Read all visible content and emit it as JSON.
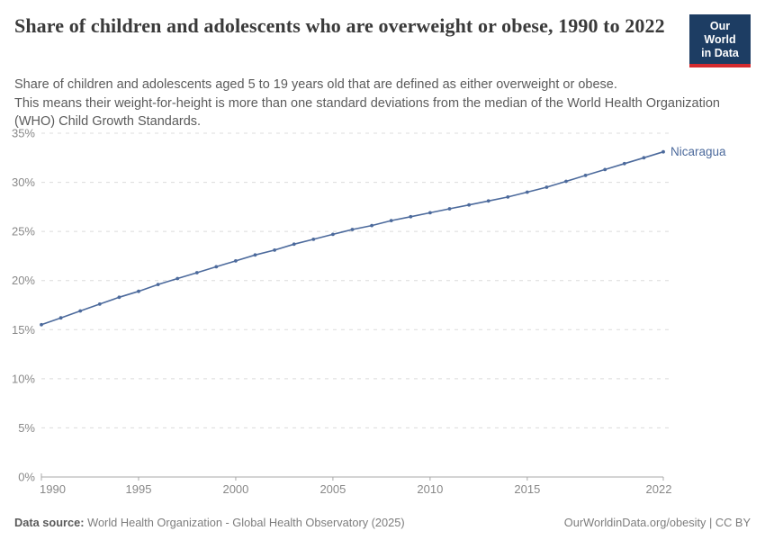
{
  "header": {
    "title": "Share of children and adolescents who are overweight or obese, 1990 to 2022",
    "subtitle_line1": "Share of children and adolescents aged 5 to 19 years old that are defined as either overweight or obese.",
    "subtitle_line2": "This means their weight-for-height is more than one standard deviations from the median of the World Health Organization (WHO) Child Growth Standards.",
    "logo": {
      "line1": "Our World",
      "line2": "in Data"
    }
  },
  "chart_data": {
    "type": "line",
    "title": "Share of children and adolescents who are overweight or obese, 1990 to 2022",
    "entity_label": "Nicaragua",
    "x": [
      1990,
      1991,
      1992,
      1993,
      1994,
      1995,
      1996,
      1997,
      1998,
      1999,
      2000,
      2001,
      2002,
      2003,
      2004,
      2005,
      2006,
      2007,
      2008,
      2009,
      2010,
      2011,
      2012,
      2013,
      2014,
      2015,
      2016,
      2017,
      2018,
      2019,
      2020,
      2021,
      2022
    ],
    "series": [
      {
        "name": "Nicaragua",
        "color": "#4c6a9c",
        "values": [
          15.5,
          16.2,
          16.9,
          17.6,
          18.3,
          18.9,
          19.6,
          20.2,
          20.8,
          21.4,
          22.0,
          22.6,
          23.1,
          23.7,
          24.2,
          24.7,
          25.2,
          25.6,
          26.1,
          26.5,
          26.9,
          27.3,
          27.7,
          28.1,
          28.5,
          29.0,
          29.5,
          30.1,
          30.7,
          31.3,
          31.9,
          32.5,
          33.1
        ]
      }
    ],
    "ylim": [
      0,
      35
    ],
    "yticks": [
      0,
      5,
      10,
      15,
      20,
      25,
      30,
      35
    ],
    "ytick_suffix": "%",
    "xticks": [
      1990,
      1995,
      2000,
      2005,
      2010,
      2015,
      2022
    ],
    "grid": "horizontal-dashed",
    "legend": "end-of-line-label"
  },
  "footer": {
    "source_label": "Data source:",
    "source_text": "World Health Organization - Global Health Observatory (2025)",
    "attribution": "OurWorldinData.org/obesity | CC BY"
  },
  "colors": {
    "line": "#4c6a9c",
    "logo_bg": "#1d3d63",
    "logo_stripe": "#d42b2f",
    "gridline": "#dcdcdc",
    "axis": "#a8a8a8",
    "tick_label": "#888888",
    "title_text": "#3a3a3a",
    "subtitle_text": "#5b5b5b",
    "footer_text": "#7d7d7d"
  }
}
